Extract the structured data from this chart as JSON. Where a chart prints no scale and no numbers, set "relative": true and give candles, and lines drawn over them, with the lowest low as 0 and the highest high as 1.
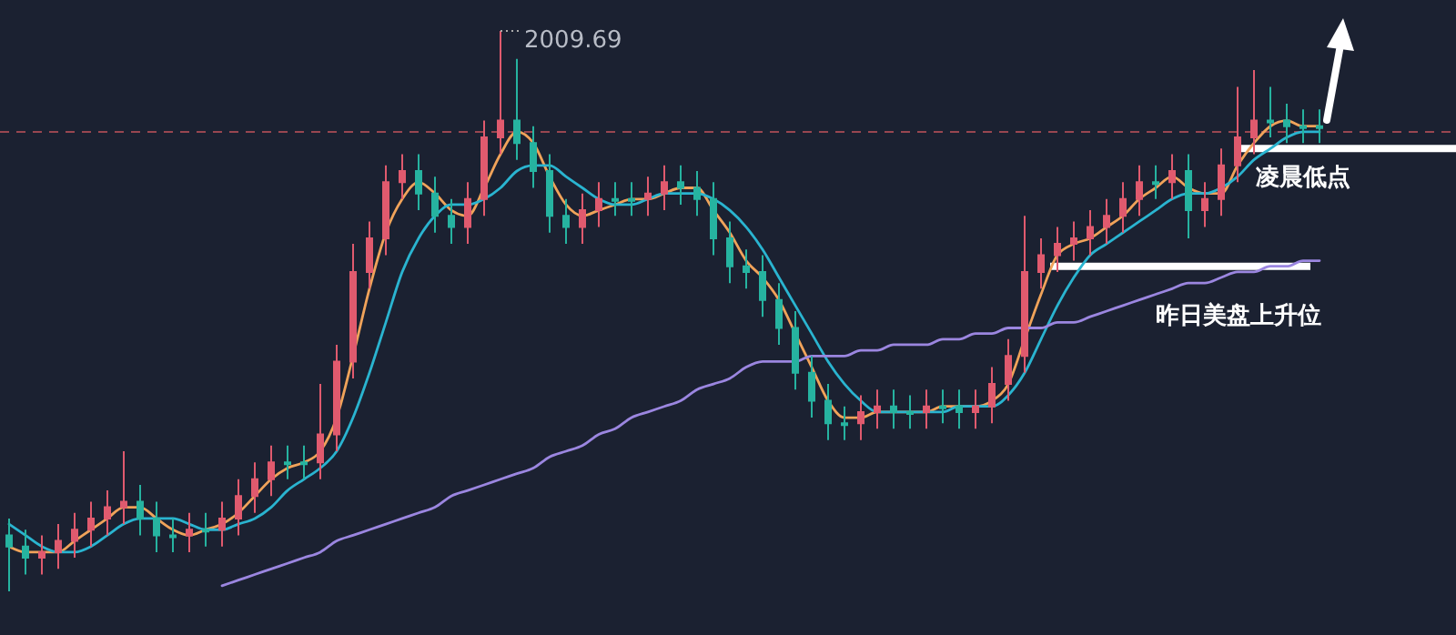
{
  "chart_data": {
    "type": "candlestick",
    "relative": true,
    "categories": [
      null,
      null,
      null,
      null,
      null,
      null,
      null,
      null,
      null,
      null,
      null,
      null,
      null,
      null,
      null,
      null,
      null,
      null,
      null,
      null,
      null,
      null,
      null,
      null,
      null,
      null,
      null,
      null,
      null,
      null,
      null,
      null,
      null,
      null,
      null,
      null,
      null,
      null,
      null,
      null,
      null,
      null,
      null,
      null,
      null,
      null,
      null,
      null,
      null,
      null,
      null,
      null,
      null,
      null,
      null,
      null,
      null,
      null,
      null,
      null,
      null,
      null,
      null,
      null,
      null,
      null,
      null,
      null,
      null,
      null,
      null,
      null,
      null,
      null,
      null,
      null,
      null,
      null,
      null,
      null,
      null
    ],
    "colors": [
      "#26b3a0",
      "#26b3a0",
      "#e05a6e",
      "#e05a6e",
      "#e05a6e",
      "#e05a6e",
      "#e05a6e",
      "#e05a6e",
      "#26b3a0",
      "#26b3a0",
      "#26b3a0",
      "#e05a6e",
      "#26b3a0",
      "#e05a6e",
      "#e05a6e",
      "#e05a6e",
      "#e05a6e",
      "#26b3a0",
      "#26b3a0",
      "#e05a6e",
      "#e05a6e",
      "#e05a6e",
      "#e05a6e",
      "#e05a6e",
      "#e05a6e",
      "#26b3a0",
      "#26b3a0",
      "#26b3a0",
      "#e05a6e",
      "#e05a6e",
      "#e05a6e",
      "#26b3a0",
      "#26b3a0",
      "#26b3a0",
      "#26b3a0",
      "#e05a6e",
      "#e05a6e",
      "#26b3a0",
      "#26b3a0",
      "#e05a6e",
      "#e05a6e",
      "#26b3a0",
      "#26b3a0",
      "#26b3a0",
      "#26b3a0",
      "#26b3a0",
      "#26b3a0",
      "#26b3a0",
      "#26b3a0",
      "#26b3a0",
      "#26b3a0",
      "#26b3a0",
      "#e05a6e",
      "#e05a6e",
      "#26b3a0",
      "#26b3a0",
      "#e05a6e",
      "#26b3a0",
      "#26b3a0",
      "#e05a6e",
      "#e05a6e",
      "#e05a6e",
      "#e05a6e",
      "#e05a6e",
      "#e05a6e",
      "#e05a6e",
      "#e05a6e",
      "#e05a6e",
      "#e05a6e",
      "#e05a6e",
      "#26b3a0",
      "#e05a6e",
      "#26b3a0",
      "#e05a6e",
      "#e05a6e",
      "#e05a6e",
      "#e05a6e",
      "#26b3a0",
      "#26b3a0",
      "#26b3a0",
      "#26b3a0"
    ],
    "ohlc": [
      [
        0.1,
        0.13,
        0.0,
        0.08
      ],
      [
        0.08,
        0.11,
        0.03,
        0.06
      ],
      [
        0.06,
        0.1,
        0.03,
        0.07
      ],
      [
        0.07,
        0.12,
        0.04,
        0.09
      ],
      [
        0.09,
        0.14,
        0.06,
        0.11
      ],
      [
        0.11,
        0.16,
        0.08,
        0.13
      ],
      [
        0.13,
        0.18,
        0.1,
        0.15
      ],
      [
        0.15,
        0.25,
        0.12,
        0.16
      ],
      [
        0.16,
        0.19,
        0.1,
        0.13
      ],
      [
        0.13,
        0.16,
        0.07,
        0.1
      ],
      [
        0.1,
        0.13,
        0.07,
        0.1
      ],
      [
        0.1,
        0.14,
        0.07,
        0.11
      ],
      [
        0.11,
        0.14,
        0.08,
        0.11
      ],
      [
        0.11,
        0.16,
        0.08,
        0.13
      ],
      [
        0.13,
        0.2,
        0.1,
        0.17
      ],
      [
        0.17,
        0.23,
        0.14,
        0.2
      ],
      [
        0.2,
        0.26,
        0.17,
        0.23
      ],
      [
        0.23,
        0.26,
        0.2,
        0.23
      ],
      [
        0.23,
        0.26,
        0.2,
        0.23
      ],
      [
        0.23,
        0.37,
        0.2,
        0.28
      ],
      [
        0.28,
        0.44,
        0.25,
        0.41
      ],
      [
        0.41,
        0.62,
        0.38,
        0.57
      ],
      [
        0.57,
        0.66,
        0.54,
        0.63
      ],
      [
        0.63,
        0.76,
        0.6,
        0.73
      ],
      [
        0.73,
        0.78,
        0.7,
        0.75
      ],
      [
        0.75,
        0.78,
        0.68,
        0.71
      ],
      [
        0.71,
        0.74,
        0.64,
        0.67
      ],
      [
        0.67,
        0.7,
        0.62,
        0.65
      ],
      [
        0.65,
        0.73,
        0.62,
        0.7
      ],
      [
        0.7,
        0.84,
        0.67,
        0.81
      ],
      [
        0.81,
        1.0,
        0.78,
        0.84
      ],
      [
        0.84,
        0.95,
        0.77,
        0.8
      ],
      [
        0.8,
        0.83,
        0.72,
        0.75
      ],
      [
        0.75,
        0.78,
        0.64,
        0.67
      ],
      [
        0.67,
        0.7,
        0.62,
        0.65
      ],
      [
        0.65,
        0.71,
        0.62,
        0.68
      ],
      [
        0.68,
        0.73,
        0.65,
        0.7
      ],
      [
        0.7,
        0.73,
        0.67,
        0.7
      ],
      [
        0.7,
        0.73,
        0.67,
        0.7
      ],
      [
        0.7,
        0.74,
        0.67,
        0.71
      ],
      [
        0.71,
        0.76,
        0.68,
        0.73
      ],
      [
        0.73,
        0.76,
        0.69,
        0.72
      ],
      [
        0.72,
        0.75,
        0.67,
        0.7
      ],
      [
        0.7,
        0.73,
        0.6,
        0.63
      ],
      [
        0.63,
        0.66,
        0.55,
        0.58
      ],
      [
        0.58,
        0.61,
        0.54,
        0.57
      ],
      [
        0.57,
        0.6,
        0.49,
        0.52
      ],
      [
        0.52,
        0.55,
        0.44,
        0.47
      ],
      [
        0.47,
        0.5,
        0.36,
        0.39
      ],
      [
        0.39,
        0.42,
        0.31,
        0.34
      ],
      [
        0.34,
        0.37,
        0.27,
        0.3
      ],
      [
        0.3,
        0.33,
        0.27,
        0.3
      ],
      [
        0.3,
        0.35,
        0.27,
        0.32
      ],
      [
        0.32,
        0.36,
        0.29,
        0.33
      ],
      [
        0.33,
        0.36,
        0.29,
        0.32
      ],
      [
        0.32,
        0.35,
        0.29,
        0.32
      ],
      [
        0.32,
        0.36,
        0.29,
        0.33
      ],
      [
        0.33,
        0.36,
        0.3,
        0.33
      ],
      [
        0.33,
        0.36,
        0.29,
        0.32
      ],
      [
        0.32,
        0.36,
        0.29,
        0.33
      ],
      [
        0.33,
        0.4,
        0.3,
        0.37
      ],
      [
        0.37,
        0.45,
        0.34,
        0.42
      ],
      [
        0.42,
        0.67,
        0.39,
        0.57
      ],
      [
        0.57,
        0.63,
        0.54,
        0.6
      ],
      [
        0.6,
        0.65,
        0.57,
        0.62
      ],
      [
        0.62,
        0.66,
        0.59,
        0.63
      ],
      [
        0.63,
        0.68,
        0.6,
        0.65
      ],
      [
        0.65,
        0.7,
        0.62,
        0.67
      ],
      [
        0.67,
        0.73,
        0.64,
        0.7
      ],
      [
        0.7,
        0.76,
        0.67,
        0.73
      ],
      [
        0.73,
        0.76,
        0.7,
        0.73
      ],
      [
        0.73,
        0.78,
        0.7,
        0.75
      ],
      [
        0.75,
        0.78,
        0.63,
        0.68
      ],
      [
        0.68,
        0.73,
        0.65,
        0.7
      ],
      [
        0.7,
        0.79,
        0.67,
        0.76
      ],
      [
        0.76,
        0.9,
        0.73,
        0.81
      ],
      [
        0.81,
        0.93,
        0.78,
        0.84
      ],
      [
        0.84,
        0.9,
        0.81,
        0.84
      ],
      [
        0.84,
        0.87,
        0.8,
        0.83
      ],
      [
        0.83,
        0.86,
        0.8,
        0.83
      ],
      [
        0.83,
        0.86,
        0.8,
        0.83
      ]
    ],
    "series": [
      {
        "type": "line",
        "color": "#f0a35a",
        "values": [
          0.08,
          0.07,
          0.07,
          0.07,
          0.09,
          0.11,
          0.13,
          0.15,
          0.15,
          0.13,
          0.11,
          0.1,
          0.11,
          0.12,
          0.14,
          0.17,
          0.2,
          0.22,
          0.23,
          0.25,
          0.31,
          0.42,
          0.54,
          0.64,
          0.7,
          0.73,
          0.71,
          0.68,
          0.67,
          0.72,
          0.78,
          0.82,
          0.8,
          0.74,
          0.69,
          0.67,
          0.68,
          0.69,
          0.7,
          0.7,
          0.71,
          0.72,
          0.72,
          0.68,
          0.64,
          0.59,
          0.56,
          0.52,
          0.46,
          0.4,
          0.34,
          0.31,
          0.31,
          0.32,
          0.32,
          0.32,
          0.32,
          0.33,
          0.33,
          0.33,
          0.34,
          0.37,
          0.45,
          0.53,
          0.6,
          0.62,
          0.63,
          0.65,
          0.67,
          0.7,
          0.72,
          0.74,
          0.72,
          0.71,
          0.71,
          0.76,
          0.8,
          0.83,
          0.84,
          0.83,
          0.83
        ]
      },
      {
        "type": "line",
        "color": "#2ab4d0",
        "values": [
          0.12,
          0.1,
          0.08,
          0.07,
          0.07,
          0.08,
          0.1,
          0.12,
          0.13,
          0.13,
          0.13,
          0.12,
          0.11,
          0.11,
          0.12,
          0.13,
          0.15,
          0.18,
          0.2,
          0.22,
          0.25,
          0.31,
          0.39,
          0.48,
          0.57,
          0.63,
          0.67,
          0.69,
          0.69,
          0.7,
          0.72,
          0.75,
          0.76,
          0.76,
          0.74,
          0.72,
          0.7,
          0.69,
          0.69,
          0.7,
          0.71,
          0.71,
          0.71,
          0.7,
          0.68,
          0.65,
          0.61,
          0.56,
          0.51,
          0.46,
          0.41,
          0.37,
          0.34,
          0.32,
          0.32,
          0.32,
          0.32,
          0.32,
          0.33,
          0.33,
          0.33,
          0.35,
          0.39,
          0.45,
          0.51,
          0.56,
          0.6,
          0.62,
          0.64,
          0.66,
          0.68,
          0.7,
          0.71,
          0.71,
          0.72,
          0.74,
          0.77,
          0.79,
          0.81,
          0.82,
          0.82
        ]
      },
      {
        "type": "line",
        "color": "#9b86e0",
        "values": [
          null,
          null,
          null,
          null,
          null,
          null,
          null,
          null,
          null,
          null,
          null,
          null,
          null,
          0.01,
          0.02,
          0.03,
          0.04,
          0.05,
          0.06,
          0.07,
          0.09,
          0.1,
          0.11,
          0.12,
          0.13,
          0.14,
          0.15,
          0.17,
          0.18,
          0.19,
          0.2,
          0.21,
          0.22,
          0.24,
          0.25,
          0.26,
          0.28,
          0.29,
          0.31,
          0.32,
          0.33,
          0.34,
          0.36,
          0.37,
          0.38,
          0.4,
          0.41,
          0.41,
          0.41,
          0.42,
          0.42,
          0.42,
          0.43,
          0.43,
          0.44,
          0.44,
          0.44,
          0.45,
          0.45,
          0.46,
          0.46,
          0.47,
          0.47,
          0.47,
          0.48,
          0.48,
          0.49,
          0.5,
          0.51,
          0.52,
          0.53,
          0.54,
          0.55,
          0.55,
          0.56,
          0.57,
          0.57,
          0.58,
          0.58,
          0.59,
          0.59
        ]
      }
    ],
    "ref_lines": [
      {
        "axis": "y",
        "value": 0.82,
        "color": "#b85058",
        "line_style": "dashed"
      },
      {
        "axis": "y",
        "value": 0.79,
        "label": "凌晨低点",
        "color": "#ffffff",
        "line_style": "solid"
      },
      {
        "axis": "y",
        "value": 0.58,
        "label": "昨日美盘上升位",
        "color": "#ffffff",
        "line_style": "solid"
      }
    ],
    "annotations": [
      "2009.69"
    ]
  }
}
